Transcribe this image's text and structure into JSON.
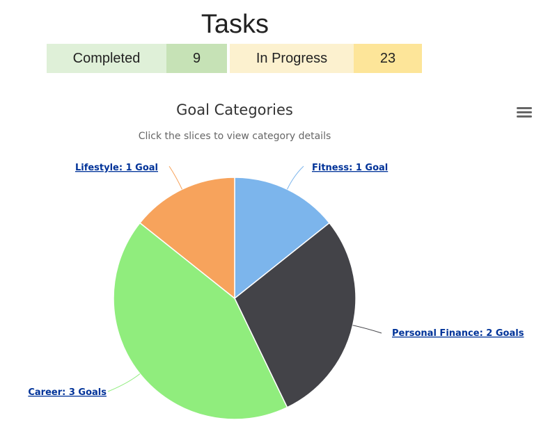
{
  "header": {
    "title": "Tasks",
    "completed_label": "Completed",
    "completed_value": "9",
    "in_progress_label": "In Progress",
    "in_progress_value": "23"
  },
  "menu": {
    "icon": "hamburger-menu-icon"
  },
  "chart_data": {
    "type": "pie",
    "title": "Goal Categories",
    "subtitle": "Click the slices to view category details",
    "slices": [
      {
        "name": "Fitness",
        "value": 1,
        "label": "Fitness: 1 Goal",
        "color": "#7cb5ec"
      },
      {
        "name": "Personal Finance",
        "value": 2,
        "label": "Personal Finance: 2 Goals",
        "color": "#434348"
      },
      {
        "name": "Career",
        "value": 3,
        "label": "Career: 3 Goals",
        "color": "#90ed7d"
      },
      {
        "name": "Lifestyle",
        "value": 1,
        "label": "Lifestyle: 1 Goal",
        "color": "#f7a35c"
      }
    ]
  }
}
